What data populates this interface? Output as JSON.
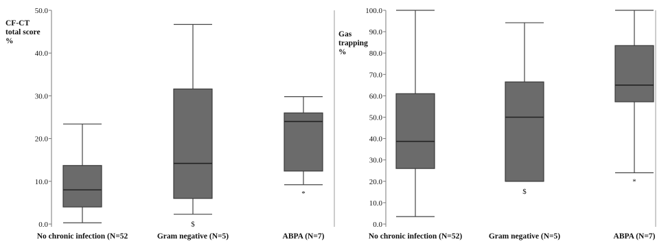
{
  "chart_data": [
    {
      "type": "box",
      "ylabel_lines": [
        "CF-CT",
        "total score",
        "%"
      ],
      "ylim": [
        0,
        50
      ],
      "yticks": [
        "0.0",
        "10.0",
        "20.0",
        "30.0",
        "40.0",
        "50.0"
      ],
      "categories": [
        "No chronic infection (N=52",
        "Gram negative (N=5)",
        "ABPA (N=7)"
      ],
      "boxes": [
        {
          "whisker_low": 0.3,
          "q1": 4.0,
          "median": 8.0,
          "q3": 13.7,
          "whisker_high": 23.4,
          "marker": ""
        },
        {
          "whisker_low": 2.3,
          "q1": 6.0,
          "median": 14.2,
          "q3": 31.6,
          "whisker_high": 46.7,
          "marker": "$"
        },
        {
          "whisker_low": 9.2,
          "q1": 12.4,
          "median": 24.0,
          "q3": 26.0,
          "whisker_high": 29.8,
          "marker": "*"
        }
      ],
      "colors": {
        "box_fill": "#6b6b6b",
        "line": "#444444"
      }
    },
    {
      "type": "box",
      "ylabel_lines": [
        "Gas",
        "trapping",
        "%"
      ],
      "ylim": [
        0,
        100
      ],
      "yticks": [
        "0.0",
        "10.0",
        "20.0",
        "30.0",
        "40.0",
        "50.0",
        "60.0",
        "70.0",
        "80.0",
        "90.0",
        "100.0"
      ],
      "categories": [
        "No chronic infection (N=52)",
        "Gram negative (N=5)",
        "ABPA (N=7)"
      ],
      "boxes": [
        {
          "whisker_low": 3.5,
          "q1": 26.0,
          "median": 38.7,
          "q3": 61.0,
          "whisker_high": 100.0,
          "marker": ""
        },
        {
          "whisker_low": 20.0,
          "q1": 20.0,
          "median": 50.0,
          "q3": 66.5,
          "whisker_high": 94.2,
          "marker": "$"
        },
        {
          "whisker_low": 24.0,
          "q1": 57.2,
          "median": 65.0,
          "q3": 83.5,
          "whisker_high": 100.0,
          "marker": "*"
        }
      ],
      "colors": {
        "box_fill": "#6b6b6b",
        "line": "#444444"
      }
    }
  ]
}
